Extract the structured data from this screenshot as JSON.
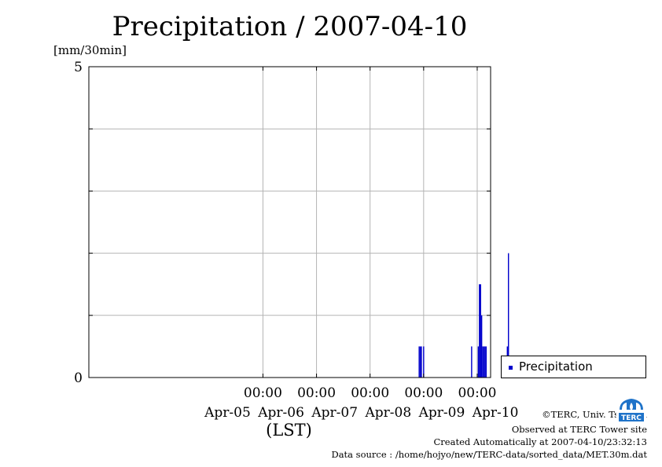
{
  "chart_data": {
    "type": "bar",
    "title": "Precipitation / 2007-04-10",
    "ylabel": "[mm/30min]",
    "xlabel": "(LST)",
    "ylim": [
      0,
      5
    ],
    "yticks": [
      0,
      5
    ],
    "xlim_hours": [
      -78,
      102
    ],
    "xticks": [
      {
        "hour": 0,
        "time": "00:00",
        "date": "Apr-05"
      },
      {
        "hour": 24,
        "time": "00:00",
        "date": "Apr-06"
      },
      {
        "hour": 48,
        "time": "00:00",
        "date": "Apr-07"
      },
      {
        "hour": 72,
        "time": "00:00",
        "date": "Apr-08"
      },
      {
        "hour": 96,
        "time": "00:00",
        "date": "Apr-09"
      },
      {
        "hour": 120,
        "time": "",
        "date": "Apr-10"
      }
    ],
    "grid": true,
    "legend_position": "right",
    "series": [
      {
        "name": "Precipitation",
        "color": "#0000cc",
        "points": [
          {
            "t": "2007-04-07 22:00",
            "v": 0.5
          },
          {
            "t": "2007-04-07 22:30",
            "v": 0.5
          },
          {
            "t": "2007-04-07 23:00",
            "v": 0.5
          },
          {
            "t": "2007-04-08 00:00",
            "v": 0.5
          },
          {
            "t": "2007-04-08 21:30",
            "v": 0.5
          },
          {
            "t": "2007-04-09 00:30",
            "v": 0.5
          },
          {
            "t": "2007-04-09 01:00",
            "v": 1.5
          },
          {
            "t": "2007-04-09 01:30",
            "v": 1.5
          },
          {
            "t": "2007-04-09 02:00",
            "v": 1.0
          },
          {
            "t": "2007-04-09 02:30",
            "v": 0.5
          },
          {
            "t": "2007-04-09 03:00",
            "v": 0.5
          },
          {
            "t": "2007-04-09 03:30",
            "v": 0.5
          },
          {
            "t": "2007-04-09 04:00",
            "v": 0.5
          },
          {
            "t": "2007-04-09 13:30",
            "v": 0.5
          },
          {
            "t": "2007-04-09 14:00",
            "v": 2.0
          }
        ]
      }
    ]
  },
  "credits": {
    "copyright": "©TERC, Univ. Tsukuba",
    "observed": "Observed at TERC Tower site",
    "created": "Created Automatically at 2007-04-10/23:32:13",
    "source": "Data source : /home/hojyo/new/TERC-data/sorted_data/MET.30m.dat"
  },
  "logo": {
    "text": "TERC",
    "color": "#1f73c9"
  }
}
